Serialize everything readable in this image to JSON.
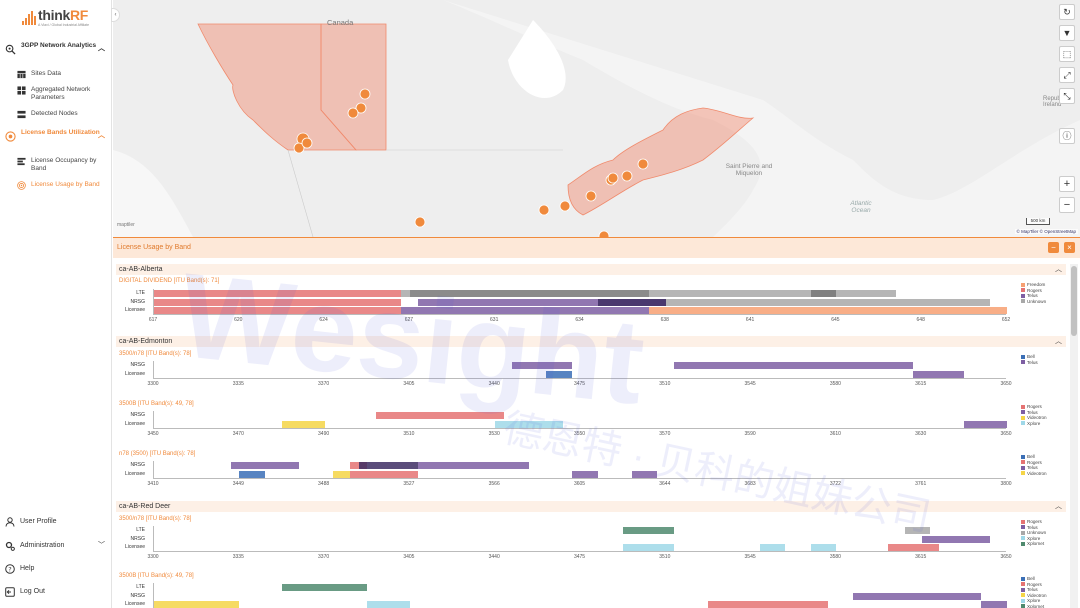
{
  "brand": {
    "name_prefix": "think",
    "name_suffix": "RF",
    "tagline": "A Viavi / Global Industrial Affiliate"
  },
  "sidebar": {
    "groups": [
      {
        "label": "3GPP Network Analytics",
        "icon": "network-search-icon",
        "active": false,
        "items": [
          {
            "label": "Sites Data",
            "icon": "table-icon",
            "active": false
          },
          {
            "label": "Aggregated Network Parameters",
            "icon": "grid-icon",
            "active": false
          },
          {
            "label": "Detected Nodes",
            "icon": "nodes-icon",
            "active": false
          }
        ]
      },
      {
        "label": "License Bands Utilization",
        "icon": "license-icon",
        "active": true,
        "items": [
          {
            "label": "License Occupancy by Band",
            "icon": "list-icon",
            "active": false
          },
          {
            "label": "License Usage by Band",
            "icon": "radar-icon",
            "active": true
          }
        ]
      }
    ],
    "bottom": [
      {
        "label": "User Profile",
        "icon": "user-icon"
      },
      {
        "label": "Administration",
        "icon": "gear-icon"
      },
      {
        "label": "Help",
        "icon": "help-icon"
      },
      {
        "label": "Log Out",
        "icon": "logout-icon"
      }
    ]
  },
  "map": {
    "labels": {
      "canada": "Canada",
      "st_pierre": "Saint Pierre and Miquelon",
      "atlantic": "Atlantic Ocean",
      "repub": "Repub of Ireland"
    },
    "scale": "500 km",
    "attribution": "© MapTiler © OpenStreetMap",
    "maptiler": "maptiler",
    "controls": [
      "refresh-icon",
      "filter-icon",
      "select-icon",
      "fullscreen-icon",
      "expand-icon",
      "compress-icon",
      "info-icon"
    ],
    "zoom_in": "+",
    "zoom_out": "−"
  },
  "panel": {
    "title": "License Usage by Band",
    "sections": [
      {
        "name": "ca-AB-Alberta",
        "bands": [
          {
            "title": "DIGITAL DIVIDEND [ITU Band(s): 71]",
            "rows": [
              "LTE",
              "NRSG",
              "Licensee"
            ],
            "ticks": [
              "617",
              "620",
              "624",
              "627",
              "631",
              "634",
              "638",
              "641",
              "645",
              "648",
              "652"
            ],
            "legend": [
              {
                "label": "Freedom",
                "color": "#f7a072"
              },
              {
                "label": "Rogers",
                "color": "#e57373"
              },
              {
                "label": "Telus",
                "color": "#7e5fa3"
              },
              {
                "label": "Unknown",
                "color": "#a8a8a8"
              }
            ]
          }
        ]
      },
      {
        "name": "ca-AB-Edmonton",
        "bands": [
          {
            "title": "3500/n78 [ITU Band(s): 78]",
            "rows": [
              "NRSG",
              "Licensee"
            ],
            "ticks": [
              "3300",
              "3335",
              "3370",
              "3405",
              "3440",
              "3475",
              "3510",
              "3545",
              "3580",
              "3615",
              "3650"
            ],
            "legend": [
              {
                "label": "Bell",
                "color": "#3b6fb6"
              },
              {
                "label": "Telus",
                "color": "#7e5fa3"
              }
            ]
          },
          {
            "title": "3500B [ITU Band(s): 49, 78]",
            "rows": [
              "NRSG",
              "Licensee"
            ],
            "ticks": [
              "3450",
              "3470",
              "3490",
              "3510",
              "3530",
              "3550",
              "3570",
              "3590",
              "3610",
              "3630",
              "3650"
            ],
            "legend": [
              {
                "label": "Rogers",
                "color": "#e57373"
              },
              {
                "label": "Telus",
                "color": "#7e5fa3"
              },
              {
                "label": "Videotron",
                "color": "#f5d547"
              },
              {
                "label": "Xplore",
                "color": "#9fd8e8"
              }
            ]
          },
          {
            "title": "n78 (3500) [ITU Band(s): 78]",
            "rows": [
              "NRSG",
              "Licensee"
            ],
            "ticks": [
              "3410",
              "3449",
              "3488",
              "3527",
              "3566",
              "3605",
              "3644",
              "3683",
              "3722",
              "3761",
              "3800"
            ],
            "legend": [
              {
                "label": "Bell",
                "color": "#3b6fb6"
              },
              {
                "label": "Rogers",
                "color": "#e57373"
              },
              {
                "label": "Telus",
                "color": "#7e5fa3"
              },
              {
                "label": "Videotron",
                "color": "#f5d547"
              }
            ]
          }
        ]
      },
      {
        "name": "ca-AB-Red Deer",
        "bands": [
          {
            "title": "3500/n78 [ITU Band(s): 78]",
            "rows": [
              "LTE",
              "NRSG",
              "Licensee"
            ],
            "ticks": [
              "3300",
              "3335",
              "3370",
              "3405",
              "3440",
              "3475",
              "3510",
              "3545",
              "3580",
              "3615",
              "3650"
            ],
            "legend": [
              {
                "label": "Rogers",
                "color": "#e57373"
              },
              {
                "label": "Telus",
                "color": "#7e5fa3"
              },
              {
                "label": "Unknown",
                "color": "#a8a8a8"
              },
              {
                "label": "Xplore",
                "color": "#9fd8e8"
              },
              {
                "label": "Xplornet",
                "color": "#4f8a6e"
              }
            ]
          },
          {
            "title": "3500B [ITU Band(s): 49, 78]",
            "rows": [
              "LTE",
              "NRSG",
              "Licensee"
            ],
            "ticks": [],
            "legend": [
              {
                "label": "Bell",
                "color": "#3b6fb6"
              },
              {
                "label": "Rogers",
                "color": "#e57373"
              },
              {
                "label": "Telus",
                "color": "#7e5fa3"
              },
              {
                "label": "Videotron",
                "color": "#f5d547"
              },
              {
                "label": "Xplore",
                "color": "#9fd8e8"
              },
              {
                "label": "Xplornet",
                "color": "#4f8a6e"
              }
            ]
          }
        ]
      }
    ]
  },
  "watermark": {
    "text": "Wesight",
    "text_cn": "德恩特 · 贝科的姐妹公司"
  }
}
